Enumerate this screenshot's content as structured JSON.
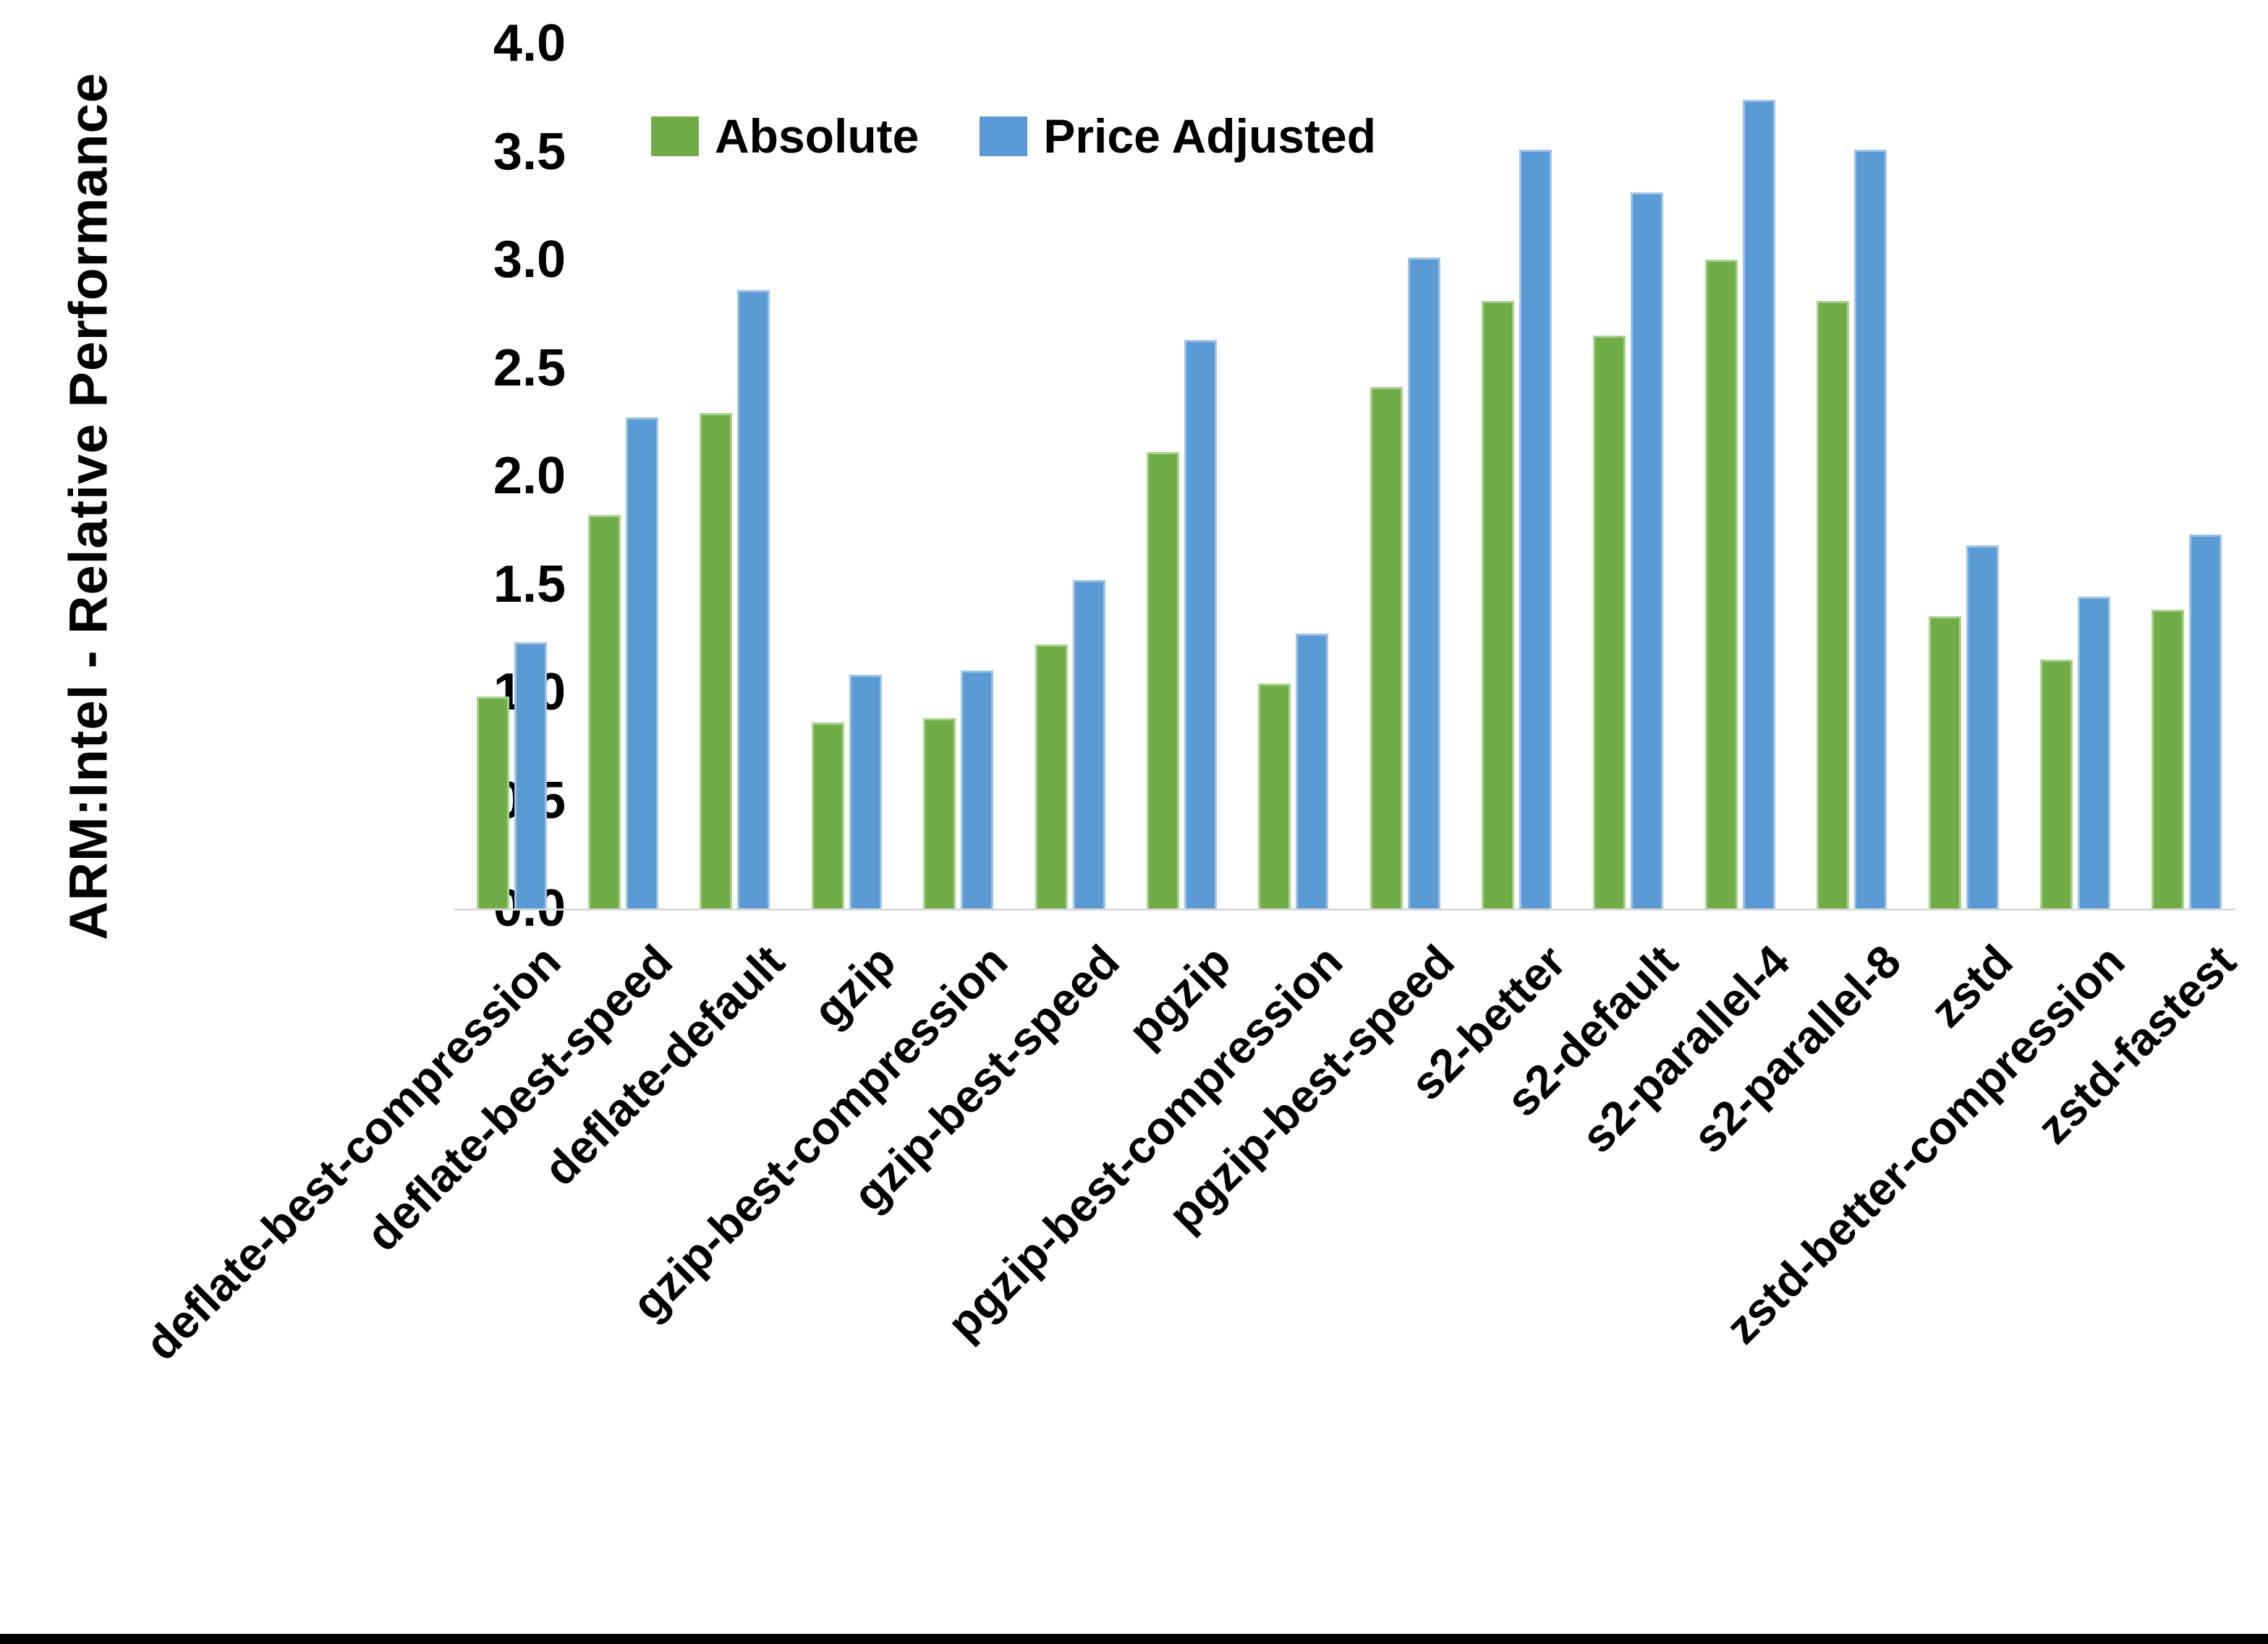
{
  "chart_data": {
    "type": "bar",
    "title": "",
    "xlabel": "",
    "ylabel": "ARM:Intel - Relative Performance",
    "ylim": [
      0.0,
      4.0
    ],
    "ytick_labels": [
      "4.0",
      "3.5",
      "3.0",
      "2.5",
      "2.0",
      "1.5",
      "1.0",
      "0.5",
      "0.0"
    ],
    "grid": false,
    "legend_position": "top-center",
    "categories": [
      "deflate-best-compression",
      "deflate-best-speed",
      "deflate-default",
      "gzip",
      "gzip-best-compression",
      "gzip-best-speed",
      "pgzip",
      "pgzip-best-compression",
      "pgzip-best-speed",
      "s2-better",
      "s2-default",
      "s2-parallel-4",
      "s2-parallel-8",
      "zstd",
      "zstd-better-compression",
      "zstd-fastest"
    ],
    "series": [
      {
        "name": "Absolute",
        "color": "#70AD47",
        "edge_color": "#A9D18E",
        "values": [
          0.98,
          1.82,
          2.29,
          0.86,
          0.88,
          1.22,
          2.11,
          1.04,
          2.41,
          2.81,
          2.65,
          3.0,
          2.81,
          1.35,
          1.15,
          1.38
        ]
      },
      {
        "name": "Price Adjusted",
        "color": "#5B9BD5",
        "edge_color": "#9DC3E6",
        "values": [
          1.23,
          2.27,
          2.86,
          1.08,
          1.1,
          1.52,
          2.63,
          1.27,
          3.01,
          3.51,
          3.31,
          3.74,
          3.51,
          1.68,
          1.44,
          1.73
        ]
      }
    ]
  },
  "colors": {
    "background": "#FFFFFF",
    "axis_line": "#D9D9D9",
    "text": "#000000",
    "bottom_border": "#000000"
  }
}
